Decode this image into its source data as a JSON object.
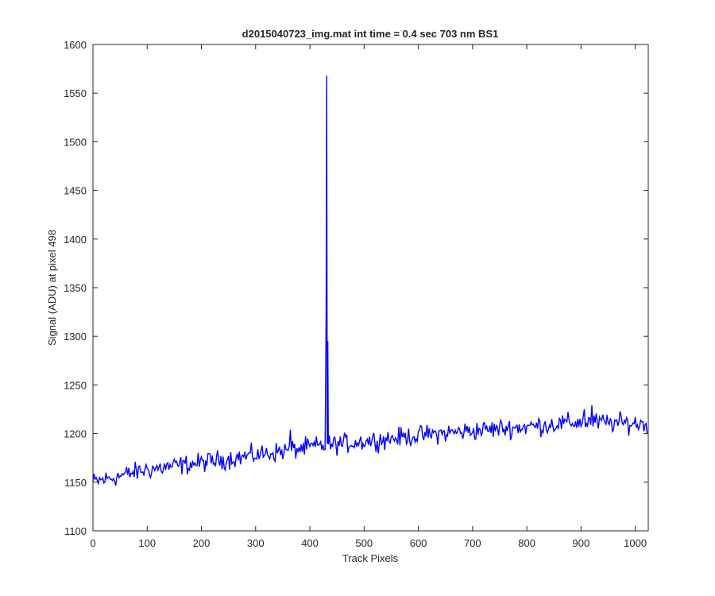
{
  "chart_data": {
    "type": "line",
    "title": "d2015040723_img.mat int time = 0.4 sec  703 nm BS1",
    "xlabel": "Track Pixels",
    "ylabel": "Signal (ADU) at pixel 498",
    "xlim": [
      0,
      1024
    ],
    "ylim": [
      1100,
      1600
    ],
    "xticks": [
      "0",
      "100",
      "200",
      "300",
      "400",
      "500",
      "600",
      "700",
      "800",
      "900",
      "1000"
    ],
    "yticks": [
      "1100",
      "1150",
      "1200",
      "1250",
      "1300",
      "1350",
      "1400",
      "1450",
      "1500",
      "1550",
      "1600"
    ],
    "grid": false,
    "line_color": "#0000ff",
    "series": [
      {
        "x_start": 0,
        "x_step": 2,
        "noise_amplitude": 7,
        "trend": [
          [
            0,
            1150
          ],
          [
            100,
            1163
          ],
          [
            200,
            1170
          ],
          [
            300,
            1178
          ],
          [
            400,
            1186
          ],
          [
            500,
            1192
          ],
          [
            600,
            1198
          ],
          [
            700,
            1203
          ],
          [
            800,
            1207
          ],
          [
            900,
            1212
          ],
          [
            1023,
            1210
          ]
        ],
        "spikes": [
          [
            364,
            1204
          ],
          [
            430,
            1320
          ],
          [
            431,
            1568
          ],
          [
            433,
            1295
          ],
          [
            906,
            1225
          ],
          [
            920,
            1229
          ]
        ]
      }
    ]
  }
}
